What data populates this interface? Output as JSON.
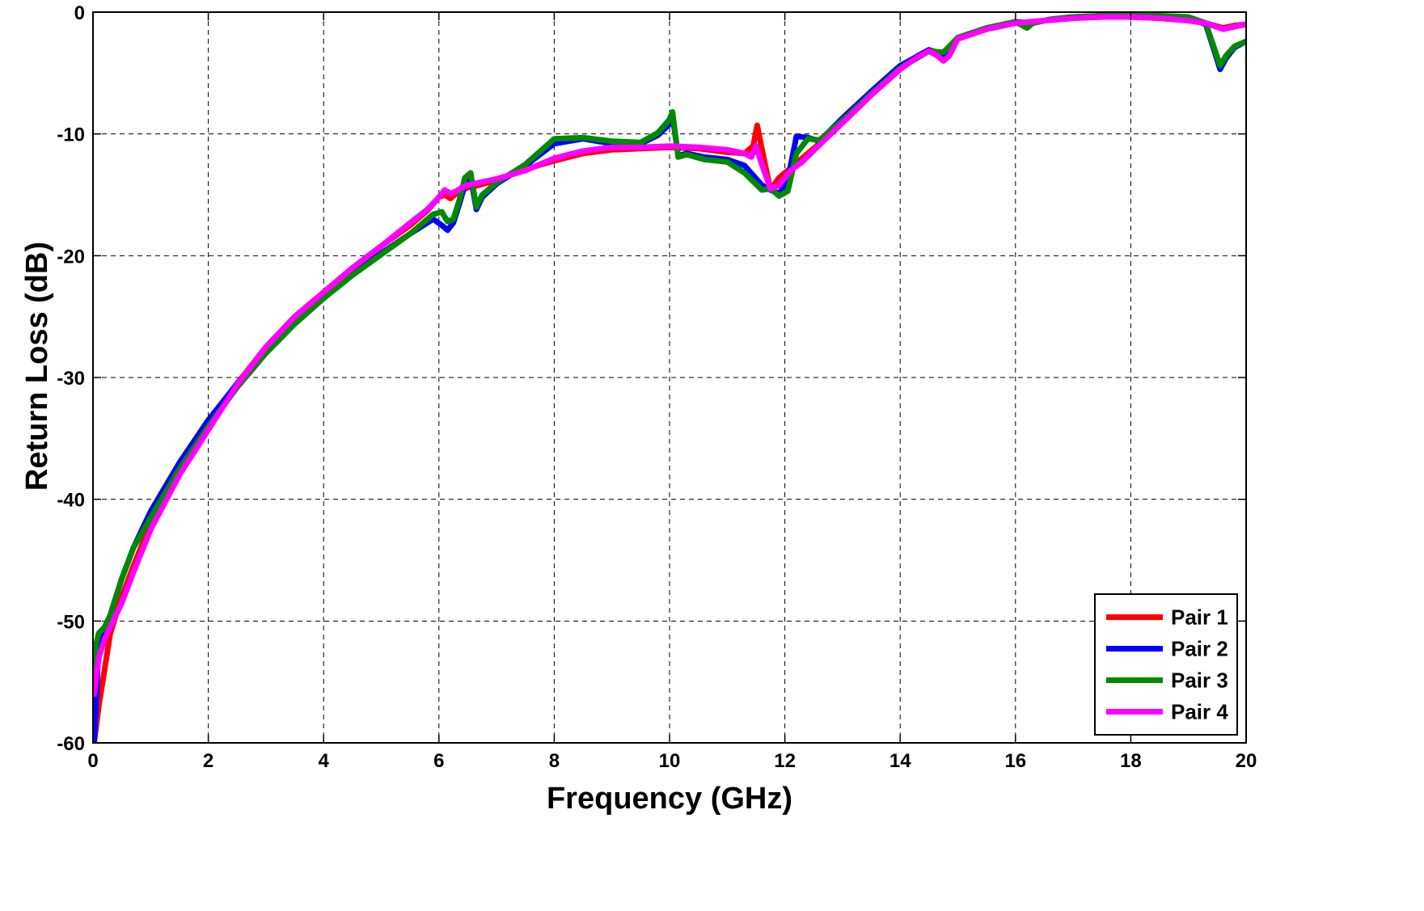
{
  "chart_data": {
    "type": "line",
    "title": "",
    "xlabel": "Frequency (GHz)",
    "ylabel": "Return Loss (dB)",
    "xlim": [
      0,
      20
    ],
    "ylim": [
      -60,
      0
    ],
    "xticks": [
      0,
      2,
      4,
      6,
      8,
      10,
      12,
      14,
      16,
      18,
      20
    ],
    "yticks": [
      -60,
      -50,
      -40,
      -30,
      -20,
      -10,
      0
    ],
    "xtick_labels": [
      "0",
      "2",
      "4",
      "6",
      "8",
      "10",
      "12",
      "14",
      "16",
      "18",
      "20"
    ],
    "ytick_labels": [
      "-60",
      "-50",
      "-40",
      "-30",
      "-20",
      "-10",
      "0"
    ],
    "grid": true,
    "legend_position": "bottom-right",
    "series": [
      {
        "name": "Pair 1",
        "color": "#ff0000",
        "x": [
          0.02,
          0.1,
          0.2,
          0.3,
          0.4,
          0.5,
          0.7,
          1.0,
          1.5,
          2.0,
          2.5,
          3.0,
          3.5,
          4.0,
          4.5,
          5.0,
          5.5,
          5.8,
          6.0,
          6.1,
          6.2,
          6.3,
          6.4,
          6.5,
          6.7,
          7.0,
          7.5,
          8.0,
          8.5,
          9.0,
          9.5,
          10.0,
          10.5,
          11.0,
          11.3,
          11.45,
          11.52,
          11.6,
          11.75,
          11.9,
          12.1,
          12.3,
          12.6,
          13.0,
          13.5,
          14.0,
          14.3,
          14.5,
          14.65,
          14.75,
          14.85,
          15.0,
          15.5,
          16.0,
          16.5,
          17.0,
          17.5,
          18.0,
          18.5,
          19.0,
          19.3,
          19.6,
          19.8,
          20.0
        ],
        "values": [
          -60,
          -57,
          -54,
          -51,
          -49.5,
          -48,
          -45.5,
          -42,
          -37.5,
          -34,
          -30.5,
          -27.5,
          -25,
          -23,
          -21,
          -19.2,
          -17.5,
          -16.3,
          -15.2,
          -15.0,
          -15.3,
          -14.9,
          -14.6,
          -14.4,
          -14.2,
          -13.8,
          -12.9,
          -12.2,
          -11.6,
          -11.3,
          -11.2,
          -11.1,
          -11.2,
          -11.5,
          -11.6,
          -11.0,
          -9.3,
          -11.2,
          -14.6,
          -13.6,
          -12.8,
          -12.0,
          -10.8,
          -9.0,
          -6.7,
          -4.6,
          -3.6,
          -3.1,
          -3.3,
          -3.7,
          -3.2,
          -2.2,
          -1.4,
          -0.9,
          -0.7,
          -0.5,
          -0.4,
          -0.4,
          -0.5,
          -0.7,
          -0.9,
          -1.3,
          -1.1,
          -1.0
        ]
      },
      {
        "name": "Pair 2",
        "color": "#0000ff",
        "x": [
          0.02,
          0.1,
          0.2,
          0.3,
          0.4,
          0.5,
          0.7,
          1.0,
          1.5,
          2.0,
          2.5,
          3.0,
          3.5,
          4.0,
          4.5,
          5.0,
          5.5,
          5.9,
          6.05,
          6.15,
          6.25,
          6.35,
          6.45,
          6.55,
          6.65,
          6.75,
          7.0,
          7.5,
          8.0,
          8.5,
          9.0,
          9.5,
          9.8,
          10.0,
          10.05,
          10.15,
          10.3,
          10.6,
          11.0,
          11.3,
          11.6,
          11.75,
          11.9,
          12.05,
          12.2,
          12.4,
          12.6,
          13.0,
          13.5,
          14.0,
          14.5,
          14.75,
          15.0,
          15.5,
          16.0,
          16.3,
          16.6,
          17.0,
          17.5,
          18.0,
          18.5,
          19.0,
          19.3,
          19.45,
          19.55,
          19.65,
          19.8,
          20.0
        ],
        "values": [
          -60,
          -52,
          -51,
          -49.5,
          -48,
          -46.5,
          -44,
          -41,
          -37,
          -33.5,
          -30.5,
          -27.8,
          -25.3,
          -23.3,
          -21.5,
          -19.8,
          -18.2,
          -17.0,
          -17.5,
          -17.9,
          -17.3,
          -15.8,
          -14.2,
          -13.5,
          -16.2,
          -15.2,
          -14.1,
          -12.6,
          -10.8,
          -10.4,
          -10.8,
          -10.8,
          -10.1,
          -9.2,
          -8.5,
          -11.8,
          -11.6,
          -11.9,
          -12.1,
          -12.6,
          -14.2,
          -14.6,
          -14.9,
          -13.8,
          -10.2,
          -10.3,
          -10.6,
          -8.7,
          -6.5,
          -4.4,
          -3.1,
          -3.6,
          -2.1,
          -1.3,
          -0.8,
          -0.9,
          -0.6,
          -0.4,
          -0.3,
          -0.3,
          -0.4,
          -0.5,
          -1.0,
          -3.2,
          -4.7,
          -3.8,
          -2.9,
          -2.4
        ]
      },
      {
        "name": "Pair 3",
        "color": "#008a00",
        "x": [
          0.02,
          0.05,
          0.1,
          0.2,
          0.3,
          0.4,
          0.5,
          0.7,
          1.0,
          1.5,
          2.0,
          2.5,
          3.0,
          3.5,
          4.0,
          4.5,
          5.0,
          5.5,
          5.9,
          6.05,
          6.15,
          6.25,
          6.35,
          6.45,
          6.55,
          6.65,
          6.75,
          7.0,
          7.5,
          8.0,
          8.5,
          9.0,
          9.5,
          9.8,
          10.0,
          10.05,
          10.15,
          10.3,
          10.6,
          11.0,
          11.3,
          11.6,
          11.75,
          11.9,
          12.05,
          12.2,
          12.4,
          12.6,
          13.0,
          13.5,
          14.0,
          14.5,
          14.75,
          15.0,
          15.5,
          16.0,
          16.2,
          16.3,
          16.6,
          17.0,
          17.5,
          18.0,
          18.5,
          19.0,
          19.3,
          19.45,
          19.55,
          19.65,
          19.8,
          20.0
        ],
        "values": [
          -55,
          -52,
          -51,
          -50.5,
          -49.5,
          -48,
          -46.5,
          -44,
          -41.5,
          -37.5,
          -34,
          -30.8,
          -28,
          -25.6,
          -23.5,
          -21.6,
          -19.9,
          -18.2,
          -16.6,
          -16.4,
          -17.2,
          -17.0,
          -15.5,
          -13.6,
          -13.2,
          -16.0,
          -15.0,
          -14.0,
          -12.5,
          -10.4,
          -10.3,
          -10.6,
          -10.7,
          -9.9,
          -8.8,
          -8.2,
          -11.9,
          -11.7,
          -12.1,
          -12.3,
          -13.2,
          -14.6,
          -14.5,
          -15.1,
          -14.7,
          -11.6,
          -10.4,
          -10.5,
          -8.9,
          -6.7,
          -4.6,
          -3.2,
          -3.3,
          -2.1,
          -1.3,
          -0.8,
          -1.3,
          -0.9,
          -0.6,
          -0.4,
          -0.3,
          -0.3,
          -0.3,
          -0.4,
          -0.9,
          -3.0,
          -4.4,
          -3.6,
          -2.8,
          -2.4
        ]
      },
      {
        "name": "Pair 4",
        "color": "#ff00ff",
        "x": [
          0.02,
          0.1,
          0.2,
          0.3,
          0.4,
          0.5,
          0.7,
          1.0,
          1.5,
          2.0,
          2.5,
          3.0,
          3.5,
          4.0,
          4.5,
          5.0,
          5.5,
          5.8,
          6.0,
          6.1,
          6.2,
          6.3,
          6.4,
          6.5,
          6.7,
          7.0,
          7.5,
          8.0,
          8.5,
          9.0,
          9.5,
          10.0,
          10.5,
          11.0,
          11.3,
          11.42,
          11.5,
          11.6,
          11.75,
          11.9,
          12.1,
          12.3,
          12.6,
          13.0,
          13.5,
          14.0,
          14.3,
          14.5,
          14.65,
          14.75,
          14.85,
          15.0,
          15.5,
          16.0,
          16.5,
          17.0,
          17.5,
          18.0,
          18.5,
          19.0,
          19.3,
          19.6,
          19.8,
          20.0
        ],
        "values": [
          -56,
          -53,
          -51.5,
          -50.5,
          -49.5,
          -48.5,
          -46,
          -42.5,
          -38,
          -34.3,
          -30.6,
          -27.5,
          -25,
          -23,
          -21,
          -19.2,
          -17.3,
          -16.2,
          -15.2,
          -14.6,
          -14.9,
          -14.7,
          -14.4,
          -14.2,
          -14.0,
          -13.7,
          -13.0,
          -12.0,
          -11.4,
          -11.1,
          -11.1,
          -11.0,
          -11.1,
          -11.3,
          -11.6,
          -11.9,
          -11.0,
          -12.5,
          -14.5,
          -14.2,
          -13.0,
          -12.3,
          -10.9,
          -9.1,
          -6.8,
          -4.7,
          -3.7,
          -3.2,
          -3.6,
          -4.0,
          -3.6,
          -2.2,
          -1.4,
          -0.9,
          -0.7,
          -0.5,
          -0.4,
          -0.4,
          -0.5,
          -0.7,
          -0.9,
          -1.4,
          -1.2,
          -1.0
        ]
      }
    ]
  }
}
